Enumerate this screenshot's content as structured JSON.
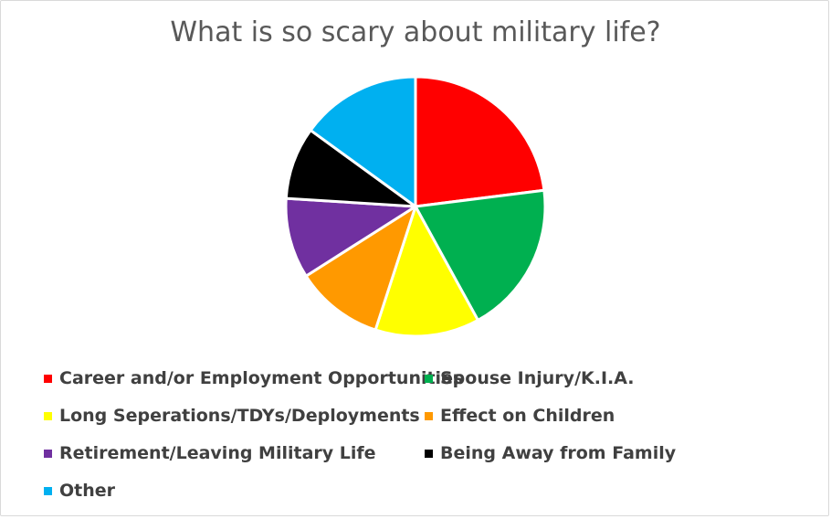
{
  "chart_data": {
    "type": "pie",
    "title": "What is so scary about military life?",
    "categories": [
      "Career and/or Employment Opportunities",
      "Spouse Injury/K.I.A.",
      "Long Seperations/TDYs/Deployments",
      "Effect on Children",
      "Retirement/Leaving Military Life",
      "Being Away from Family",
      "Other"
    ],
    "values": [
      23,
      19,
      13,
      11,
      10,
      9,
      15
    ],
    "colors": [
      "#FF0000",
      "#00B050",
      "#FFFF00",
      "#FF9900",
      "#7030A0",
      "#000000",
      "#00B0F0"
    ],
    "slice_border_color": "#FFFFFF",
    "legend_position": "bottom",
    "start_angle": "top, clockwise"
  }
}
